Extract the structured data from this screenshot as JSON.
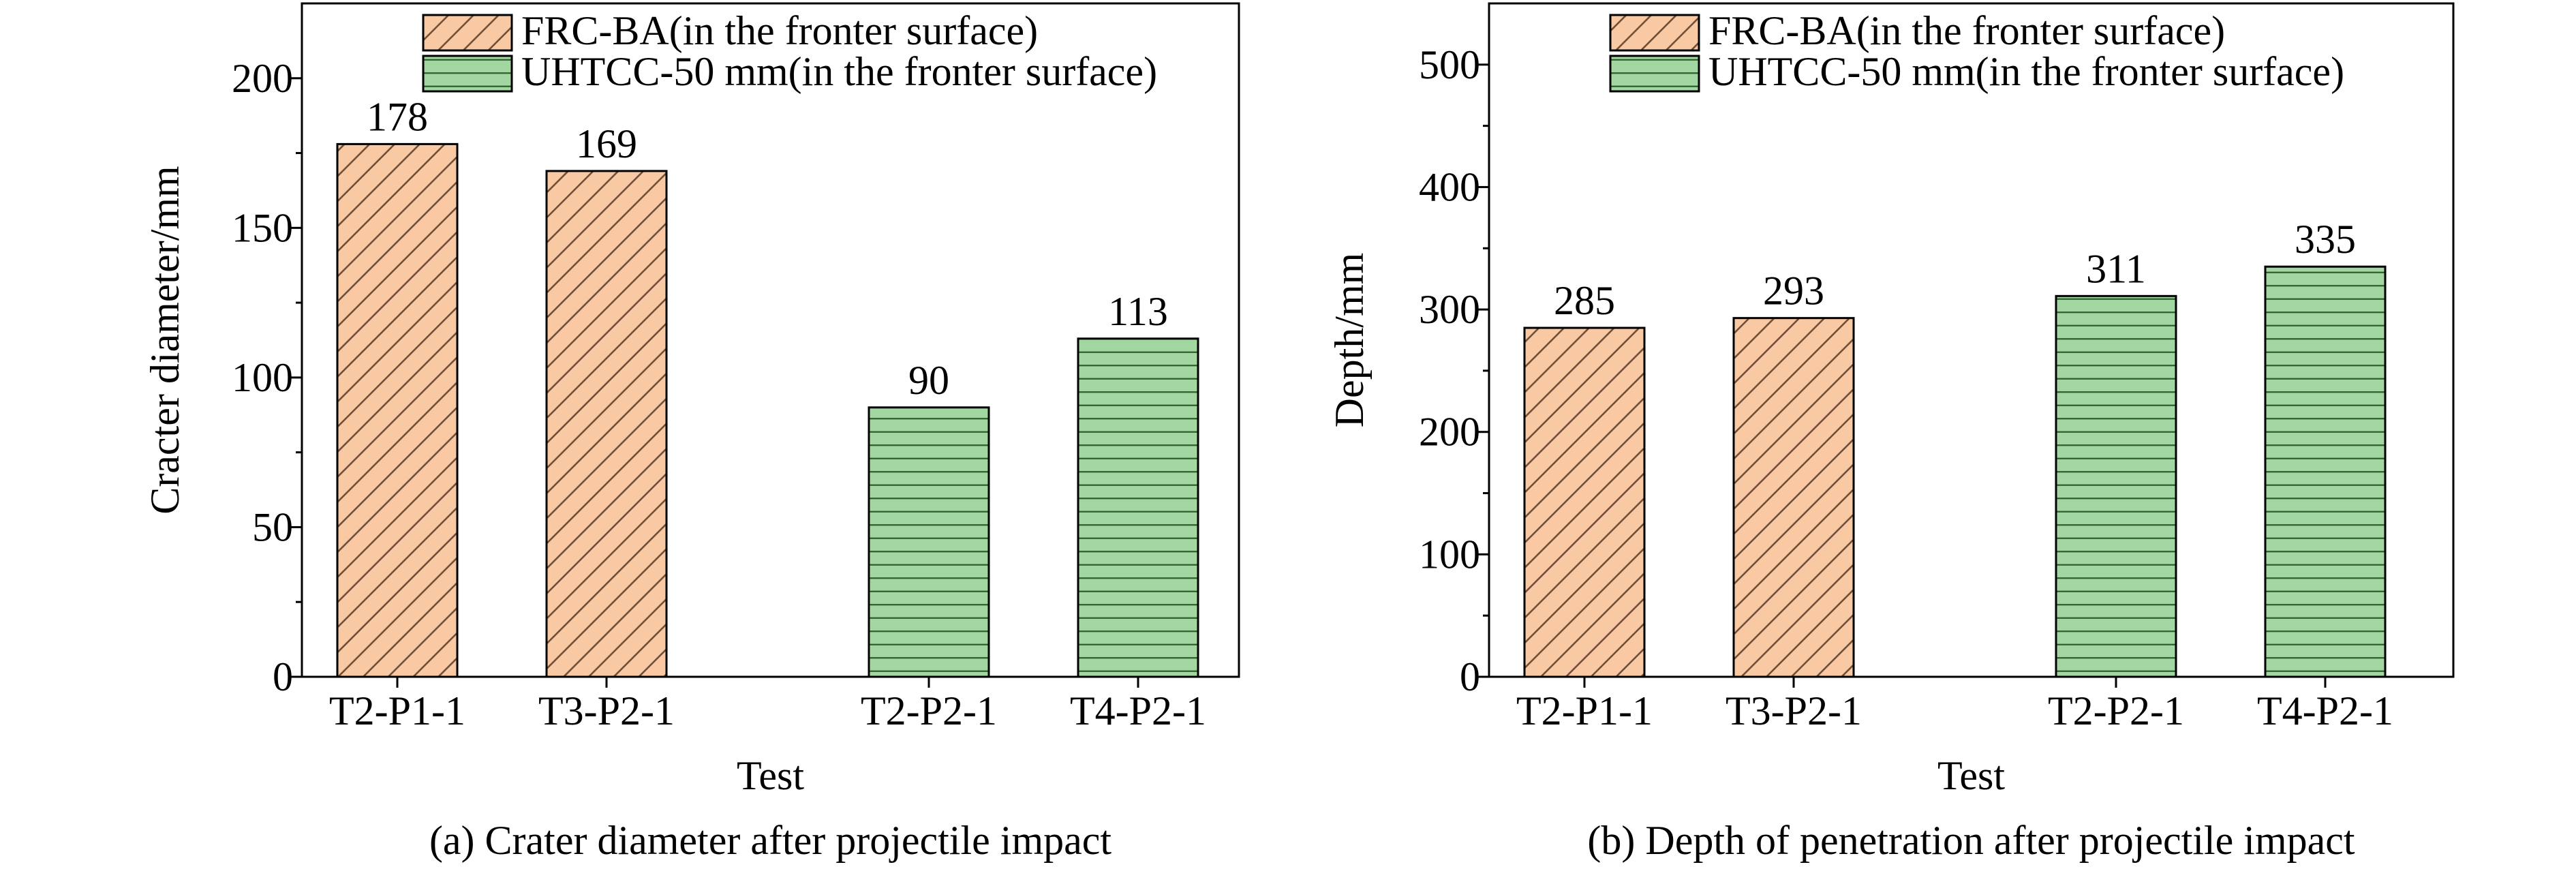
{
  "chart_data": [
    {
      "type": "bar",
      "caption": "(a) Crater diameter after projectile impact",
      "xlabel": "Test",
      "ylabel": "Cracter diameter/mm",
      "ylim": [
        0,
        225
      ],
      "yticks": [
        0,
        50,
        100,
        150,
        200
      ],
      "categories": [
        "T2-P1-1",
        "T3-P2-1",
        "T2-P2-1",
        "T4-P2-1"
      ],
      "series": [
        {
          "name": "FRC-BA(in the fronter surface)",
          "pattern": "diagonal-hatch",
          "color": "#f9c9a4",
          "values": [
            178,
            169,
            null,
            null
          ]
        },
        {
          "name": "UHTCC-50 mm(in the fronter surface)",
          "pattern": "horizontal-hatch",
          "color": "#a3d7a1",
          "values": [
            null,
            null,
            90,
            113
          ]
        }
      ],
      "data_labels": [
        "178",
        "169",
        "90",
        "113"
      ],
      "grid": false,
      "legend_position": "top"
    },
    {
      "type": "bar",
      "caption": "(b) Depth of penetration after projectile impact",
      "xlabel": "Test",
      "ylabel": "Depth/mm",
      "ylim": [
        0,
        550
      ],
      "yticks": [
        0,
        100,
        200,
        300,
        400,
        500
      ],
      "categories": [
        "T2-P1-1",
        "T3-P2-1",
        "T2-P2-1",
        "T4-P2-1"
      ],
      "series": [
        {
          "name": "FRC-BA(in the fronter surface)",
          "pattern": "diagonal-hatch",
          "color": "#f9c9a4",
          "values": [
            285,
            293,
            null,
            null
          ]
        },
        {
          "name": "UHTCC-50 mm(in the fronter surface)",
          "pattern": "horizontal-hatch",
          "color": "#a3d7a1",
          "values": [
            null,
            null,
            311,
            335
          ]
        }
      ],
      "data_labels": [
        "285",
        "293",
        "311",
        "335"
      ],
      "grid": false,
      "legend_position": "top"
    }
  ]
}
